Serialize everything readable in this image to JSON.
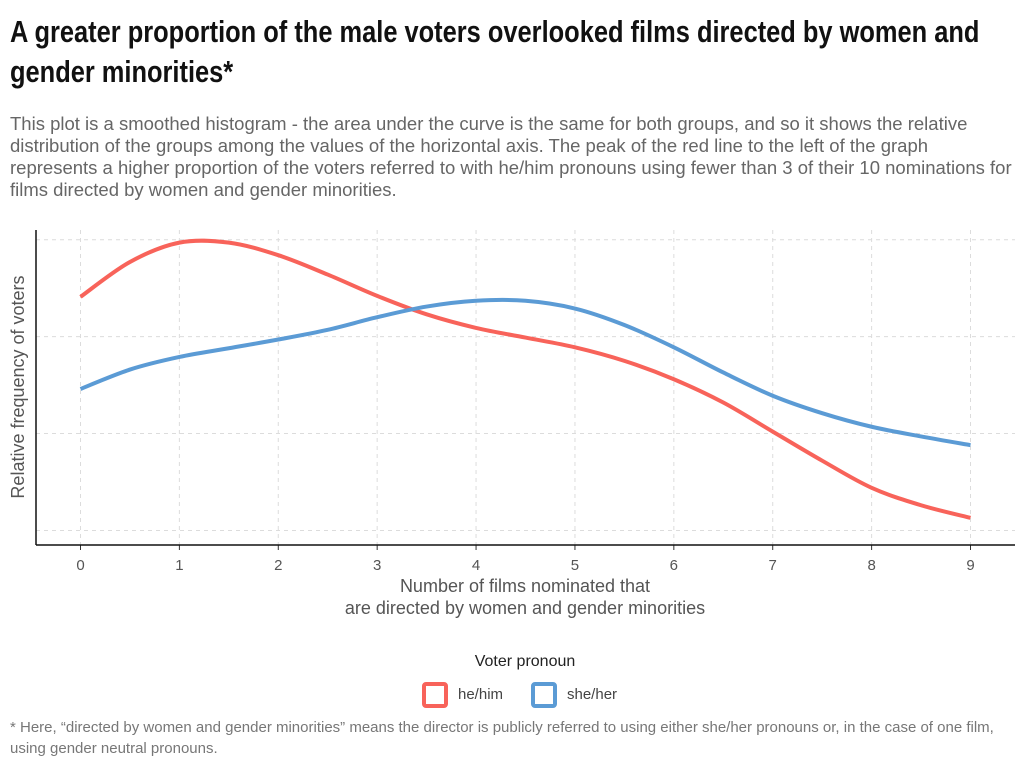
{
  "chart_data": {
    "type": "line",
    "title": "A greater proportion of the male voters overlooked films directed by women and gender minorities*",
    "subtitle": "This plot is a smoothed histogram - the area under the curve is the same for both groups, and so it shows the relative distribution of the groups among the values of the horizontal axis. The peak of the red line to the left of the graph represents a higher proportion of the voters referred to with he/him pronouns using fewer than 3 of their 10 nominations for films directed by women and gender minorities.",
    "x_label": "Number of films nominated that\nare directed by women and gender minorities",
    "y_label": "Relative frequency of voters",
    "legend_title": "Voter pronoun",
    "footnote": "* Here, “directed by women and gender minorities” means the director is publicly referred to using either she/her pronouns or, in the case of one film, using gender neutral pronouns.",
    "x": [
      0,
      0.5,
      1,
      1.5,
      2,
      2.5,
      3,
      3.5,
      4,
      4.5,
      5,
      5.5,
      6,
      6.5,
      7,
      7.5,
      8,
      8.5,
      9
    ],
    "series": [
      {
        "name": "he/him",
        "color": "#f8635a",
        "values": [
          2.41,
          2.77,
          2.97,
          2.97,
          2.84,
          2.64,
          2.42,
          2.23,
          2.09,
          1.99,
          1.89,
          1.75,
          1.56,
          1.32,
          1.02,
          0.72,
          0.44,
          0.26,
          0.13
        ]
      },
      {
        "name": "she/her",
        "color": "#5b9bd5",
        "values": [
          1.46,
          1.66,
          1.79,
          1.88,
          1.97,
          2.07,
          2.2,
          2.31,
          2.37,
          2.37,
          2.29,
          2.12,
          1.89,
          1.63,
          1.39,
          1.21,
          1.07,
          0.97,
          0.88
        ]
      }
    ],
    "xlim": [
      -0.45,
      9.45
    ],
    "xticks": [
      0,
      1,
      2,
      3,
      4,
      5,
      6,
      7,
      8,
      9
    ],
    "ylim": [
      -0.15,
      3.1
    ],
    "yticks": [
      0,
      1,
      2,
      3
    ],
    "ytick_labels": false,
    "grid": true,
    "legend": "bottom"
  }
}
